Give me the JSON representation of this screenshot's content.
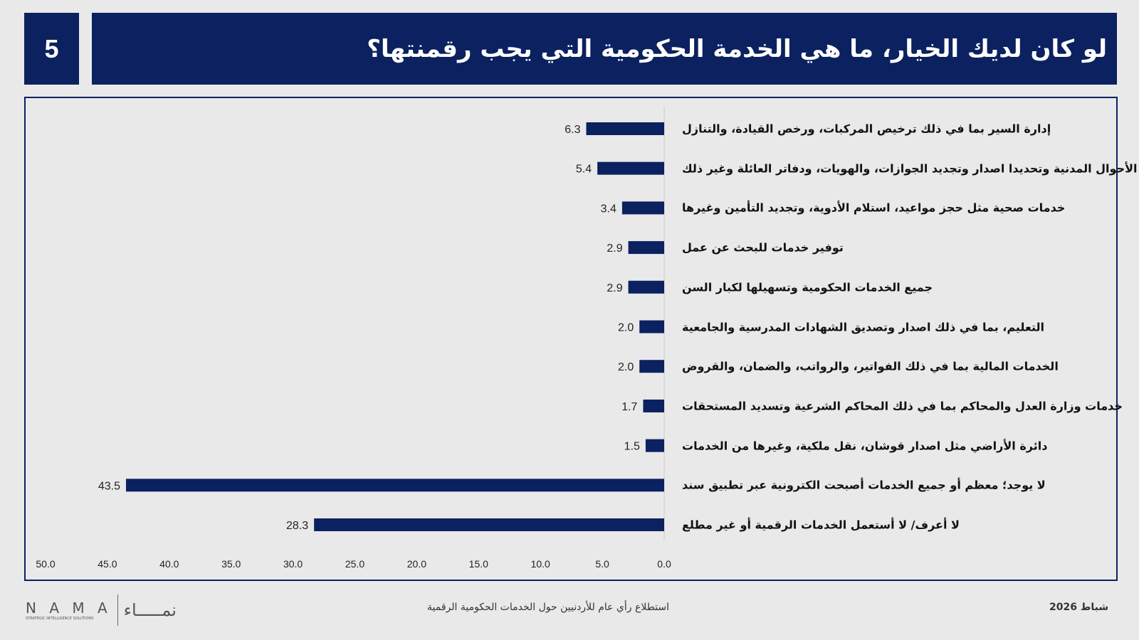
{
  "header": {
    "slide_number": "5",
    "title": "لو كان لديك الخيار، ما هي الخدمة الحكومية التي يجب رقمنتها؟"
  },
  "chart_data": {
    "type": "bar",
    "orientation": "horizontal",
    "categories": [
      "إدارة السير بما في ذلك ترخيص المركبات، ورخص القيادة، والتنازل",
      "الأحوال المدنية وتحديدا اصدار وتجديد الجوازات، والهويات، ودفاتر العائلة وغير ذلك",
      "خدمات صحية مثل حجز مواعيد، استلام الأدوية، وتجديد التأمين وغيرها",
      "توفير خدمات للبحث عن عمل",
      "جميع الخدمات الحكومية وتسهيلها لكبار السن",
      "التعليم، بما في ذلك اصدار وتصديق الشهادات المدرسية والجامعية",
      "الخدمات المالية بما في ذلك الفواتير، والرواتب، والضمان، والقروض",
      "خدمات وزارة العدل والمحاكم بما في ذلك المحاكم الشرعية وتسديد المستحقات",
      "دائرة الأراضي مثل اصدار قوشان، نقل ملكية، وغيرها من الخدمات",
      "لا يوجد؛ معظم أو جميع الخدمات أصبحت الكترونية عبر تطبيق سند",
      "لا أعرف/ لا أستعمل الخدمات الرقمية أو غير مطلع"
    ],
    "values": [
      6.3,
      5.4,
      3.4,
      2.9,
      2.9,
      2.0,
      2.0,
      1.7,
      1.5,
      43.5,
      28.3
    ],
    "value_labels": [
      "6.3",
      "5.4",
      "3.4",
      "2.9",
      "2.9",
      "2.0",
      "2.0",
      "1.7",
      "1.5",
      "43.5",
      "28.3"
    ],
    "xlim": [
      50,
      0
    ],
    "x_reversed": true,
    "x_ticks": [
      "50.0",
      "45.0",
      "40.0",
      "35.0",
      "30.0",
      "25.0",
      "20.0",
      "15.0",
      "10.0",
      "5.0",
      "0.0"
    ],
    "grid": false,
    "bar_color": "#0b2160"
  },
  "footer": {
    "date": "شباط 2026",
    "subtitle": "استطلاع رأي عام للأردنيين حول الخدمات الحكومية الرقمية",
    "logo_latin": "N A M A",
    "logo_arabic": "نمـــــاء",
    "logo_tagline": "STRATEGIC INTELLIGENCE SOLUTIONS"
  }
}
